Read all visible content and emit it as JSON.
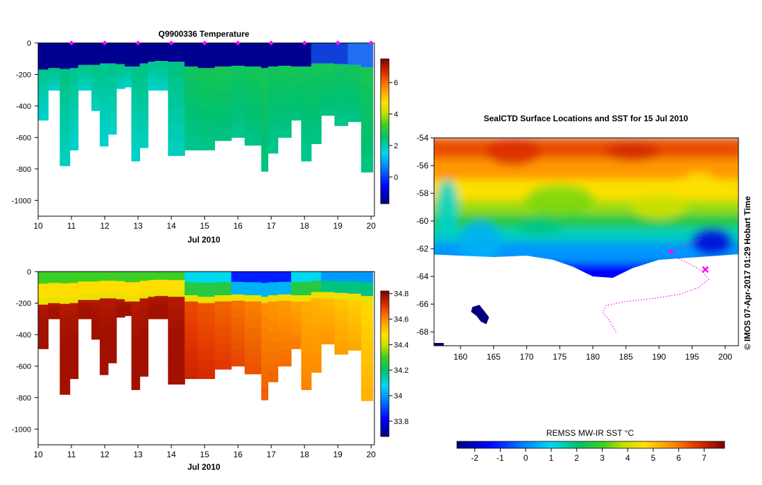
{
  "chart_data": [
    {
      "type": "heatmap",
      "panel": "temperature-section",
      "title": "Q9900336  Temperature",
      "xlabel": "Jul 2010",
      "ylabel": "",
      "xlim": [
        10,
        20.1
      ],
      "ylim": [
        -1100,
        0
      ],
      "x_ticks": [
        10,
        11,
        12,
        13,
        14,
        15,
        16,
        17,
        18,
        19,
        20
      ],
      "y_ticks": [
        0,
        -200,
        -400,
        -600,
        -800,
        -1000
      ],
      "colorbar": {
        "min": -1.7,
        "max": 7.5,
        "ticks": [
          0,
          2,
          4,
          6
        ]
      },
      "profile_markers_x": [
        11,
        12,
        13,
        14,
        15,
        16,
        17,
        18,
        19,
        20
      ],
      "profiles": [
        {
          "x0": 10.0,
          "x1": 10.3,
          "depth": 490,
          "surface_layer": 170
        },
        {
          "x0": 10.3,
          "x1": 10.65,
          "depth": 300,
          "surface_layer": 160
        },
        {
          "x0": 10.65,
          "x1": 10.95,
          "depth": 780,
          "surface_layer": 165
        },
        {
          "x0": 10.95,
          "x1": 11.2,
          "depth": 680,
          "surface_layer": 160
        },
        {
          "x0": 11.2,
          "x1": 11.6,
          "depth": 300,
          "surface_layer": 140
        },
        {
          "x0": 11.6,
          "x1": 11.85,
          "depth": 430,
          "surface_layer": 140
        },
        {
          "x0": 11.85,
          "x1": 12.1,
          "depth": 655,
          "surface_layer": 130
        },
        {
          "x0": 12.1,
          "x1": 12.35,
          "depth": 580,
          "surface_layer": 130
        },
        {
          "x0": 12.35,
          "x1": 12.6,
          "depth": 290,
          "surface_layer": 135
        },
        {
          "x0": 12.6,
          "x1": 12.8,
          "depth": 280,
          "surface_layer": 150
        },
        {
          "x0": 12.8,
          "x1": 13.05,
          "depth": 750,
          "surface_layer": 150
        },
        {
          "x0": 13.05,
          "x1": 13.3,
          "depth": 665,
          "surface_layer": 130
        },
        {
          "x0": 13.3,
          "x1": 13.5,
          "depth": 300,
          "surface_layer": 120
        },
        {
          "x0": 13.5,
          "x1": 13.9,
          "depth": 300,
          "surface_layer": 115
        },
        {
          "x0": 13.9,
          "x1": 14.4,
          "depth": 715,
          "surface_layer": 120
        },
        {
          "x0": 14.4,
          "x1": 14.8,
          "depth": 680,
          "surface_layer": 150
        },
        {
          "x0": 14.8,
          "x1": 15.3,
          "depth": 680,
          "surface_layer": 160
        },
        {
          "x0": 15.3,
          "x1": 15.8,
          "depth": 620,
          "surface_layer": 150
        },
        {
          "x0": 15.8,
          "x1": 16.2,
          "depth": 600,
          "surface_layer": 145
        },
        {
          "x0": 16.2,
          "x1": 16.7,
          "depth": 650,
          "surface_layer": 150
        },
        {
          "x0": 16.7,
          "x1": 16.9,
          "depth": 815,
          "surface_layer": 160
        },
        {
          "x0": 16.9,
          "x1": 17.2,
          "depth": 700,
          "surface_layer": 150
        },
        {
          "x0": 17.2,
          "x1": 17.6,
          "depth": 600,
          "surface_layer": 145
        },
        {
          "x0": 17.6,
          "x1": 17.9,
          "depth": 490,
          "surface_layer": 150
        },
        {
          "x0": 17.9,
          "x1": 18.2,
          "depth": 750,
          "surface_layer": 150
        },
        {
          "x0": 18.2,
          "x1": 18.5,
          "depth": 640,
          "surface_layer": 130
        },
        {
          "x0": 18.5,
          "x1": 18.9,
          "depth": 460,
          "surface_layer": 130
        },
        {
          "x0": 18.9,
          "x1": 19.3,
          "depth": 525,
          "surface_layer": 135
        },
        {
          "x0": 19.3,
          "x1": 19.7,
          "depth": 500,
          "surface_layer": 140
        },
        {
          "x0": 19.7,
          "x1": 20.05,
          "depth": 820,
          "surface_layer": 155
        }
      ]
    },
    {
      "type": "heatmap",
      "panel": "salinity-section",
      "title": "",
      "xlabel": "Jul 2010",
      "ylabel": "",
      "xlim": [
        10,
        20.1
      ],
      "ylim": [
        -1100,
        0
      ],
      "x_ticks": [
        10,
        11,
        12,
        13,
        14,
        15,
        16,
        17,
        18,
        19,
        20
      ],
      "y_ticks": [
        0,
        -200,
        -400,
        -600,
        -800,
        -1000
      ],
      "colorbar": {
        "min": 33.68,
        "max": 34.82,
        "ticks": [
          33.8,
          34,
          34.2,
          34.4,
          34.6,
          34.8
        ]
      }
    },
    {
      "type": "heatmap",
      "panel": "sst-map",
      "title": "SealCTD Surface Locations and SST for 15 Jul 2010",
      "xlabel": "",
      "ylabel": "",
      "xlim": [
        156,
        202
      ],
      "ylim": [
        -69,
        -54
      ],
      "x_ticks": [
        160,
        165,
        170,
        175,
        180,
        185,
        190,
        195,
        200
      ],
      "y_ticks": [
        -54,
        -56,
        -58,
        -60,
        -62,
        -64,
        -66,
        -68
      ],
      "side_label": "© IMOS 07-Apr-2017 01:29 Hobart Time",
      "colorbar": {
        "label": "REMSS MW-IR SST °C",
        "min": -2.7,
        "max": 7.8,
        "ticks": [
          -2,
          -1,
          0,
          1,
          2,
          3,
          4,
          5,
          6,
          7
        ]
      }
    }
  ],
  "colors": {
    "marker": "#ff00ff",
    "background": "#ffffff"
  }
}
